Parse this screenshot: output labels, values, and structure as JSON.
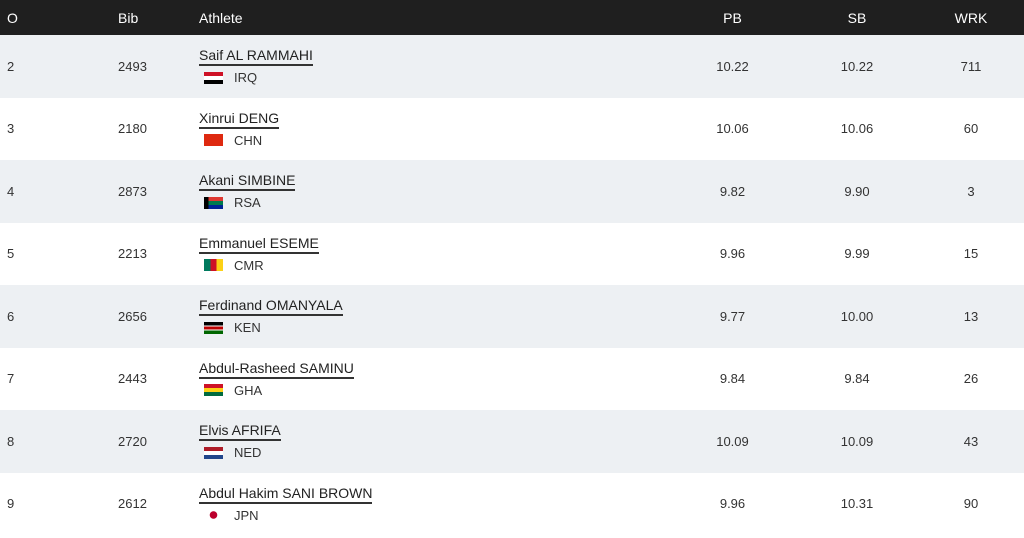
{
  "columns": {
    "order": "O",
    "bib": "Bib",
    "athlete": "Athlete",
    "pb": "PB",
    "sb": "SB",
    "wrk": "WRK"
  },
  "rows": [
    {
      "order": "2",
      "bib": "2493",
      "name": "Saif AL RAMMAHI",
      "country": "IRQ",
      "pb": "10.22",
      "sb": "10.22",
      "wrk": "711"
    },
    {
      "order": "3",
      "bib": "2180",
      "name": "Xinrui DENG",
      "country": "CHN",
      "pb": "10.06",
      "sb": "10.06",
      "wrk": "60"
    },
    {
      "order": "4",
      "bib": "2873",
      "name": "Akani SIMBINE",
      "country": "RSA",
      "pb": "9.82",
      "sb": "9.90",
      "wrk": "3"
    },
    {
      "order": "5",
      "bib": "2213",
      "name": "Emmanuel ESEME",
      "country": "CMR",
      "pb": "9.96",
      "sb": "9.99",
      "wrk": "15"
    },
    {
      "order": "6",
      "bib": "2656",
      "name": "Ferdinand OMANYALA",
      "country": "KEN",
      "pb": "9.77",
      "sb": "10.00",
      "wrk": "13"
    },
    {
      "order": "7",
      "bib": "2443",
      "name": "Abdul-Rasheed SAMINU",
      "country": "GHA",
      "pb": "9.84",
      "sb": "9.84",
      "wrk": "26"
    },
    {
      "order": "8",
      "bib": "2720",
      "name": "Elvis AFRIFA",
      "country": "NED",
      "pb": "10.09",
      "sb": "10.09",
      "wrk": "43"
    },
    {
      "order": "9",
      "bib": "2612",
      "name": "Abdul Hakim SANI BROWN",
      "country": "JPN",
      "pb": "9.96",
      "sb": "10.31",
      "wrk": "90"
    }
  ]
}
